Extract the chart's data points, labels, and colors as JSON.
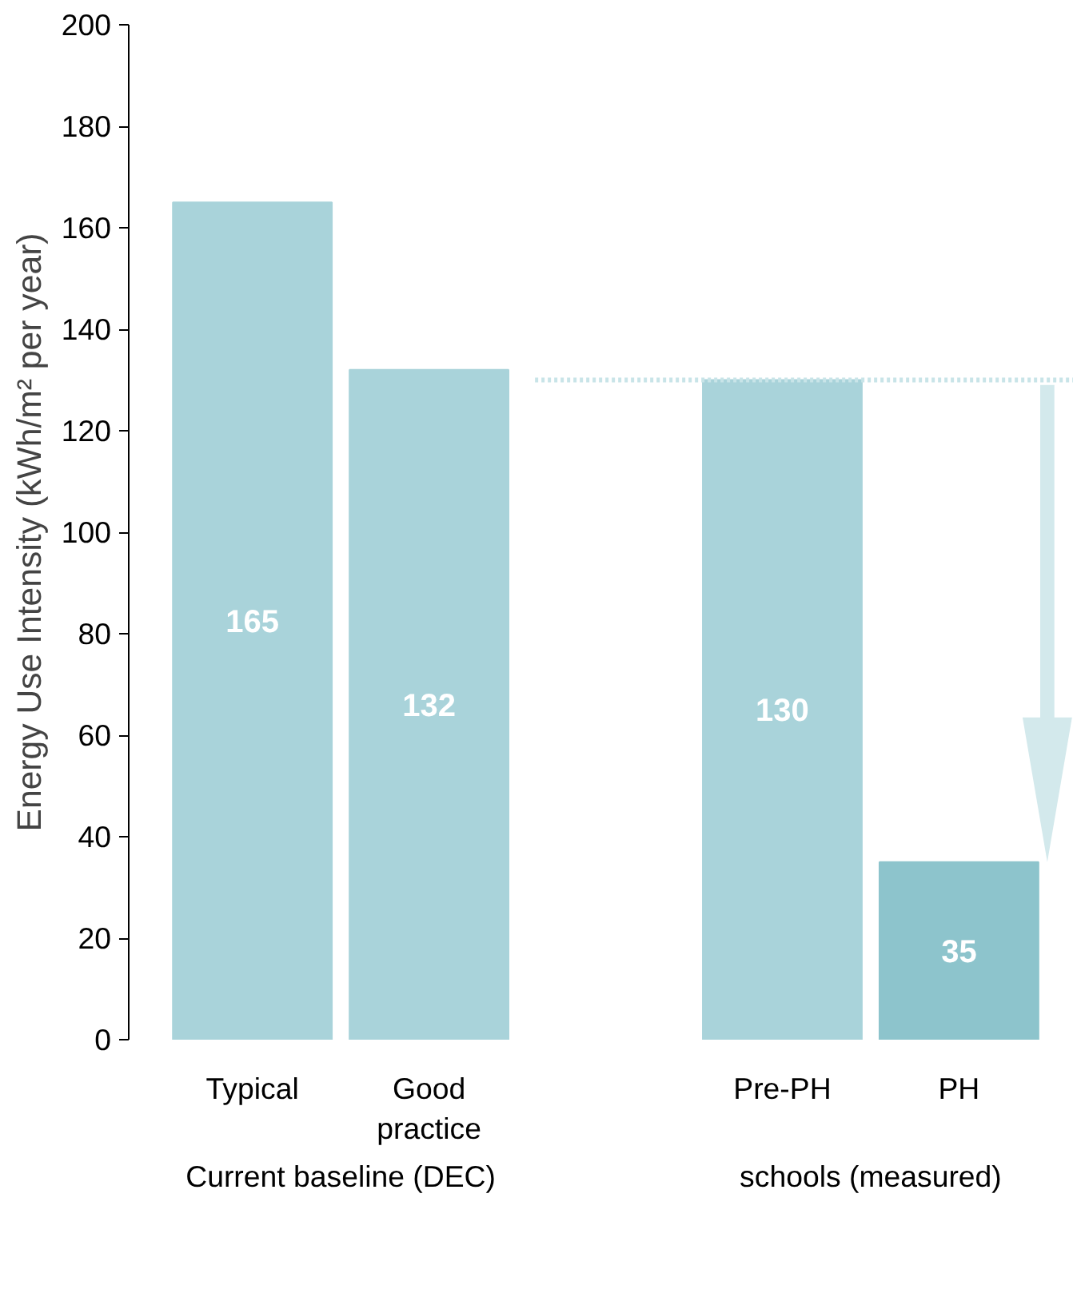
{
  "chart_data": {
    "type": "bar",
    "ylabel": "Energy Use Intensity (kWh/m² per year)",
    "categories": [
      "Typical",
      "Good practice",
      null,
      "Pre-PH",
      "PH"
    ],
    "values": [
      165,
      132,
      null,
      130,
      35
    ],
    "colors": [
      "#a9d3da",
      "#a9d3da",
      null,
      "#a9d3da",
      "#8dc4cc"
    ],
    "ylim": [
      0,
      200
    ],
    "yticks": [
      0,
      20,
      40,
      60,
      80,
      100,
      120,
      140,
      160,
      180,
      200
    ],
    "grid": false,
    "data_labels": true,
    "ref_lines": [
      {
        "axis": "y",
        "value": 130,
        "color": "#c8e4e8",
        "line_style": "dotted"
      }
    ],
    "annotations": [
      "Current baseline (DEC)",
      "schools (measured)"
    ]
  }
}
